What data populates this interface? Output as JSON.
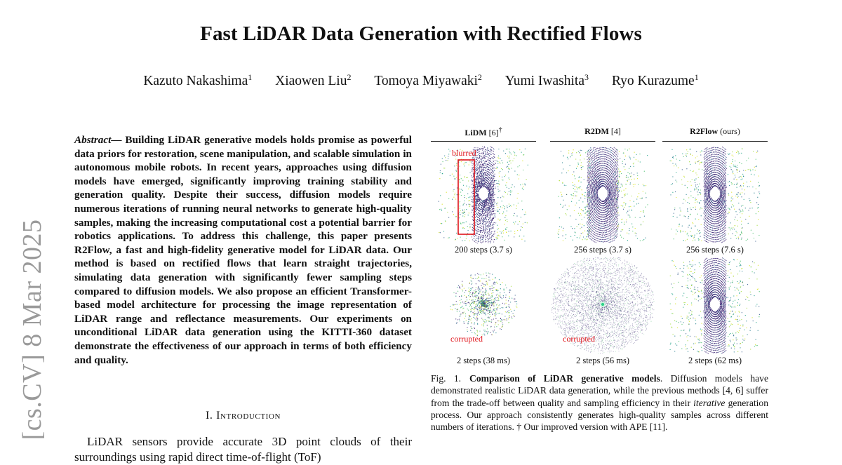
{
  "paper": {
    "title": "Fast LiDAR Data Generation with Rectified Flows",
    "authors": [
      {
        "name": "Kazuto Nakashima",
        "aff": "1"
      },
      {
        "name": "Xiaowen Liu",
        "aff": "2"
      },
      {
        "name": "Tomoya Miyawaki",
        "aff": "2"
      },
      {
        "name": "Yumi Iwashita",
        "aff": "3"
      },
      {
        "name": "Ryo Kurazume",
        "aff": "1"
      }
    ],
    "arxiv_stamp": "[cs.CV]  8 Mar 2025"
  },
  "abstract": {
    "lead": "Abstract—",
    "text": " Building LiDAR generative models holds promise as powerful data priors for restoration, scene manipulation, and scalable simulation in autonomous mobile robots. In recent years, approaches using diffusion models have emerged, significantly improving training stability and generation quality. Despite their success, diffusion models require numerous iterations of running neural networks to generate high-quality samples, making the increasing computational cost a potential barrier for robotics applications. To address this challenge, this paper presents R2Flow, a fast and high-fidelity generative model for LiDAR data. Our method is based on rectified flows that learn straight trajectories, simulating data generation with significantly fewer sampling steps compared to diffusion models. We also propose an efficient Transformer-based model architecture for processing the image representation of LiDAR range and reflectance measurements. Our experiments on unconditional LiDAR data generation using the KITTI-360 dataset demonstrate the effectiveness of our approach in terms of both efficiency and quality."
  },
  "section": {
    "heading": "I. Introduction",
    "intro_text": "LiDAR sensors provide accurate 3D point clouds of their surroundings using rapid direct time-of-flight (ToF)"
  },
  "figure": {
    "columns": [
      {
        "name": "LiDM",
        "ref": " [6]",
        "mark": "†"
      },
      {
        "name": "R2DM",
        "ref": " [4]",
        "mark": ""
      },
      {
        "name": "R2Flow",
        "ref": " (ours)",
        "mark": ""
      }
    ],
    "row1_steps": [
      "200 steps (3.7 s)",
      "256 steps (3.7 s)",
      "256 steps (7.6 s)"
    ],
    "row2_steps": [
      "2 steps (38 ms)",
      "2 steps (56 ms)",
      "2 steps (62 ms)"
    ],
    "annotations": {
      "blurred": "blurred",
      "corrupted": "corrupted"
    },
    "annotation_color": "#e0141a",
    "caption": {
      "label": "Fig. 1.",
      "bold": "Comparison of LiDAR generative models",
      "text1": ". Diffusion models have demonstrated realistic LiDAR data generation, while the previous methods [4, 6] suffer from the trade-off between quality and sampling efficiency in their ",
      "italic": "iterative",
      "text2": " generation process. Our approach consistently generates high-quality samples across different numbers of iterations. † Our improved version with APE [11]."
    }
  }
}
